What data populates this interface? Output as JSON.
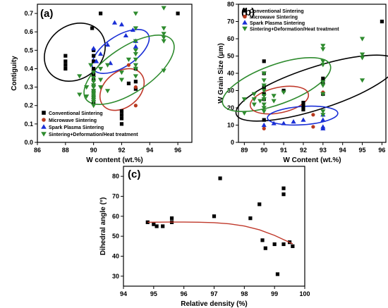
{
  "chart_data": [
    {
      "type": "scatter",
      "panel_label": "(a)",
      "xlabel": "W content (wt.%)",
      "ylabel": "Contiguity",
      "xlim": [
        86,
        97
      ],
      "ylim": [
        0,
        0.75
      ],
      "xticks": [
        86,
        88,
        90,
        92,
        94,
        96
      ],
      "yticks": [
        0.0,
        0.1,
        0.2,
        0.3,
        0.4,
        0.5,
        0.6,
        0.7
      ],
      "legend_position": "bottom-left",
      "series": [
        {
          "name": "Conventional Sintering",
          "marker": "square",
          "color": "#000000",
          "points": [
            [
              88,
              0.47
            ],
            [
              88,
              0.44
            ],
            [
              88,
              0.42
            ],
            [
              88,
              0.4
            ],
            [
              89.9,
              0.62
            ],
            [
              90.5,
              0.7
            ],
            [
              90,
              0.5
            ],
            [
              90,
              0.47
            ],
            [
              90,
              0.44
            ],
            [
              90,
              0.4
            ],
            [
              90,
              0.37
            ],
            [
              90,
              0.34
            ],
            [
              90,
              0.31
            ],
            [
              90,
              0.28
            ],
            [
              90,
              0.25
            ],
            [
              90,
              0.22
            ],
            [
              92,
              0.17
            ],
            [
              92,
              0.13
            ],
            [
              92,
              0.1
            ],
            [
              92,
              0.15
            ],
            [
              92.5,
              0.32
            ],
            [
              93,
              0.4
            ],
            [
              93,
              0.33
            ],
            [
              93,
              0.29
            ],
            [
              96,
              0.7
            ]
          ]
        },
        {
          "name": "Microwave Sintering",
          "marker": "circle",
          "color": "#b8391e",
          "points": [
            [
              92.5,
              0.42
            ],
            [
              93,
              0.3
            ],
            [
              93,
              0.2
            ]
          ]
        },
        {
          "name": "Spark Plasma Sintering",
          "marker": "triangle",
          "color": "#1a2fd6",
          "points": [
            [
              90,
              0.51
            ],
            [
              90.2,
              0.44
            ],
            [
              90.5,
              0.48
            ],
            [
              91,
              0.53
            ],
            [
              91.2,
              0.43
            ],
            [
              91.5,
              0.65
            ],
            [
              92,
              0.64
            ],
            [
              92.3,
              0.58
            ],
            [
              92.8,
              0.61
            ],
            [
              93,
              0.55
            ],
            [
              93,
              0.52
            ]
          ]
        },
        {
          "name": "Sintering+Deformation/Heat treatment",
          "marker": "triangle-down",
          "color": "#2e8b2e",
          "points": [
            [
              89,
              0.36
            ],
            [
              89,
              0.26
            ],
            [
              89.5,
              0.3
            ],
            [
              89.5,
              0.25
            ],
            [
              89.8,
              0.42
            ],
            [
              90,
              0.38
            ],
            [
              90,
              0.35
            ],
            [
              90,
              0.33
            ],
            [
              90,
              0.31
            ],
            [
              90,
              0.3
            ],
            [
              90,
              0.28
            ],
            [
              90,
              0.27
            ],
            [
              90,
              0.26
            ],
            [
              90,
              0.25
            ],
            [
              90,
              0.24
            ],
            [
              90,
              0.23
            ],
            [
              90,
              0.22
            ],
            [
              90,
              0.2
            ],
            [
              90.5,
              0.4
            ],
            [
              90.5,
              0.34
            ],
            [
              90.5,
              0.3
            ],
            [
              91,
              0.42
            ],
            [
              91,
              0.28
            ],
            [
              92,
              0.38
            ],
            [
              92,
              0.34
            ],
            [
              92.5,
              0.45
            ],
            [
              93,
              0.7
            ],
            [
              93,
              0.62
            ],
            [
              93,
              0.55
            ],
            [
              93,
              0.5
            ],
            [
              93,
              0.48
            ],
            [
              93,
              0.45
            ],
            [
              93,
              0.42
            ],
            [
              93,
              0.4
            ],
            [
              93,
              0.36
            ],
            [
              95,
              0.73
            ],
            [
              95,
              0.62
            ],
            [
              95,
              0.59
            ],
            [
              95,
              0.57
            ],
            [
              95,
              0.55
            ],
            [
              95,
              0.39
            ]
          ]
        }
      ]
    },
    {
      "type": "scatter",
      "panel_label": "(b)",
      "xlabel": "W Content (wt.%)",
      "ylabel": "W Grain Size (μm)",
      "xlim": [
        88.7,
        96.2
      ],
      "ylim": [
        0,
        80
      ],
      "xticks": [
        89,
        90,
        91,
        92,
        93,
        94,
        95,
        96
      ],
      "yticks": [
        0,
        10,
        20,
        30,
        40,
        50,
        60,
        70,
        80
      ],
      "legend_position": "top-left",
      "series": [
        {
          "name": "Conventional Sintering",
          "marker": "square",
          "color": "#000000",
          "points": [
            [
              90,
              47
            ],
            [
              90,
              40
            ],
            [
              90,
              32
            ],
            [
              90,
              28
            ],
            [
              90,
              25
            ],
            [
              90,
              13
            ],
            [
              91,
              30
            ],
            [
              92,
              23
            ],
            [
              92,
              21
            ],
            [
              92,
              19
            ],
            [
              93,
              37
            ],
            [
              93,
              35
            ],
            [
              93,
              28
            ],
            [
              96,
              70
            ]
          ]
        },
        {
          "name": "Microwave Sintering",
          "marker": "circle",
          "color": "#b8391e",
          "points": [
            [
              90,
              8
            ],
            [
              92.5,
              16
            ],
            [
              92.5,
              9
            ],
            [
              93,
              29
            ]
          ]
        },
        {
          "name": "Spark Plasma Sintering",
          "marker": "triangle",
          "color": "#1a2fd6",
          "points": [
            [
              90,
              10
            ],
            [
              90.5,
              11
            ],
            [
              91,
              11
            ],
            [
              91.5,
              12
            ],
            [
              92,
              13
            ],
            [
              93,
              16
            ],
            [
              93,
              13
            ],
            [
              93,
              9
            ],
            [
              93,
              8
            ]
          ]
        },
        {
          "name": "Sintering+Deformation/Heat treatment",
          "marker": "triangle-down",
          "color": "#2e8b2e",
          "points": [
            [
              89,
              25
            ],
            [
              89,
              17
            ],
            [
              89.5,
              28
            ],
            [
              89.5,
              25
            ],
            [
              89.5,
              22
            ],
            [
              89.8,
              24
            ],
            [
              90,
              40
            ],
            [
              90,
              36
            ],
            [
              90,
              33
            ],
            [
              90,
              30
            ],
            [
              90,
              27
            ],
            [
              90,
              25
            ],
            [
              90,
              22
            ],
            [
              90,
              20
            ],
            [
              90,
              18
            ],
            [
              90.5,
              27
            ],
            [
              90.5,
              24
            ],
            [
              91,
              29
            ],
            [
              93,
              56
            ],
            [
              93,
              54
            ],
            [
              93,
              47
            ],
            [
              93,
              45
            ],
            [
              93,
              35
            ],
            [
              93,
              33
            ],
            [
              93,
              28
            ],
            [
              93,
              18
            ],
            [
              93,
              16
            ],
            [
              95,
              60
            ],
            [
              95,
              51
            ],
            [
              95,
              49
            ],
            [
              95,
              36
            ]
          ]
        }
      ]
    },
    {
      "type": "scatter",
      "panel_label": "(c)",
      "xlabel": "Relative density (%)",
      "ylabel": "Dihedral angle (°)",
      "xlim": [
        94,
        100
      ],
      "ylim": [
        25,
        85
      ],
      "xticks": [
        94,
        95,
        96,
        97,
        98,
        99,
        100
      ],
      "yticks": [
        30,
        40,
        50,
        60,
        70,
        80
      ],
      "series": [
        {
          "name": "",
          "marker": "square",
          "color": "#000000",
          "points": [
            [
              94.8,
              57
            ],
            [
              95.0,
              56
            ],
            [
              95.1,
              55
            ],
            [
              95.3,
              55
            ],
            [
              95.6,
              59
            ],
            [
              95.6,
              57
            ],
            [
              97,
              60
            ],
            [
              97.2,
              79
            ],
            [
              98.2,
              59
            ],
            [
              98.5,
              66
            ],
            [
              98.6,
              48
            ],
            [
              98.7,
              44
            ],
            [
              99,
              46
            ],
            [
              99.1,
              31
            ],
            [
              99.3,
              74
            ],
            [
              99.3,
              71
            ],
            [
              99.3,
              46
            ],
            [
              99.5,
              47
            ],
            [
              99.6,
              45
            ]
          ]
        },
        {
          "name": "",
          "type": "fit",
          "color": "#c0392b",
          "points": [
            [
              94.8,
              57
            ],
            [
              95.5,
              57.1
            ],
            [
              96,
              57.1
            ],
            [
              96.5,
              57
            ],
            [
              97,
              56.8
            ],
            [
              97.5,
              56.2
            ],
            [
              98,
              55.1
            ],
            [
              98.5,
              53.2
            ],
            [
              99,
              50.4
            ],
            [
              99.3,
              48.3
            ],
            [
              99.6,
              46.2
            ]
          ]
        }
      ]
    }
  ]
}
